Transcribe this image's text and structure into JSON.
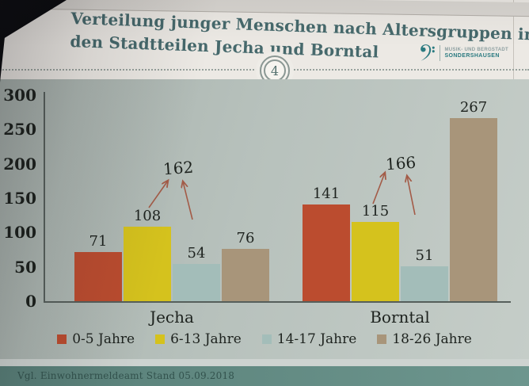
{
  "slide": {
    "title_line1": "Verteilung junger Menschen nach Altersgruppen in",
    "title_line2": "den Stadtteilen Jecha und Borntal",
    "page_number": "4",
    "logo": {
      "icon": "bass-clef-icon",
      "org": "MUSIK- UND BERGSTADT",
      "city": "SONDERSHAUSEN",
      "color": "#2a7a80"
    },
    "source_note": "Vgl. Einwohnermeldeamt Stand 05.09.2018"
  },
  "colors": {
    "title_text": "#46696c",
    "header_bg": "#ece9e4",
    "chart_bg": "#b7c1bc",
    "footer_band": "#5f867e",
    "annotation_arrow": "#a35b47"
  },
  "chart_data": {
    "type": "bar",
    "title": "Verteilung junger Menschen nach Altersgruppen in den Stadtteilen Jecha und Borntal",
    "categories": [
      "Jecha",
      "Borntal"
    ],
    "series": [
      {
        "name": "0-5 Jahre",
        "color": "#bb4c2f",
        "values": [
          71,
          141
        ]
      },
      {
        "name": "6-13 Jahre",
        "color": "#d5c21d",
        "values": [
          108,
          115
        ]
      },
      {
        "name": "14-17 Jahre",
        "color": "#a3bdb9",
        "values": [
          54,
          51
        ]
      },
      {
        "name": "18-26 Jahre",
        "color": "#a8957a",
        "values": [
          76,
          267
        ]
      }
    ],
    "ylim": [
      0,
      300
    ],
    "yticks": [
      300,
      250,
      200,
      150,
      100,
      50,
      0
    ],
    "grid": false,
    "legend_position": "bottom",
    "annotations": [
      {
        "text": "162",
        "category": "Jecha"
      },
      {
        "text": "166",
        "category": "Borntal"
      }
    ]
  }
}
